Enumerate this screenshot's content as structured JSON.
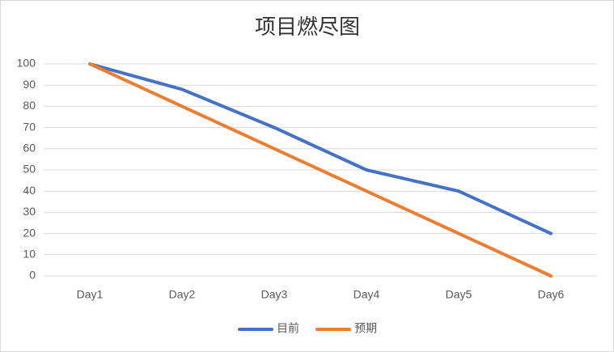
{
  "chart_data": {
    "type": "line",
    "title": "项目燃尽图",
    "categories": [
      "Day1",
      "Day2",
      "Day3",
      "Day4",
      "Day5",
      "Day6"
    ],
    "series": [
      {
        "name": "目前",
        "color": "#4472c4",
        "values": [
          100,
          88,
          70,
          50,
          40,
          20
        ]
      },
      {
        "name": "预期",
        "color": "#ed7d31",
        "values": [
          100,
          80,
          60,
          40,
          20,
          0
        ]
      }
    ],
    "ylim": [
      0,
      100
    ],
    "yticks": [
      0,
      10,
      20,
      30,
      40,
      50,
      60,
      70,
      80,
      90,
      100
    ],
    "grid": true,
    "legend": "bottom"
  }
}
